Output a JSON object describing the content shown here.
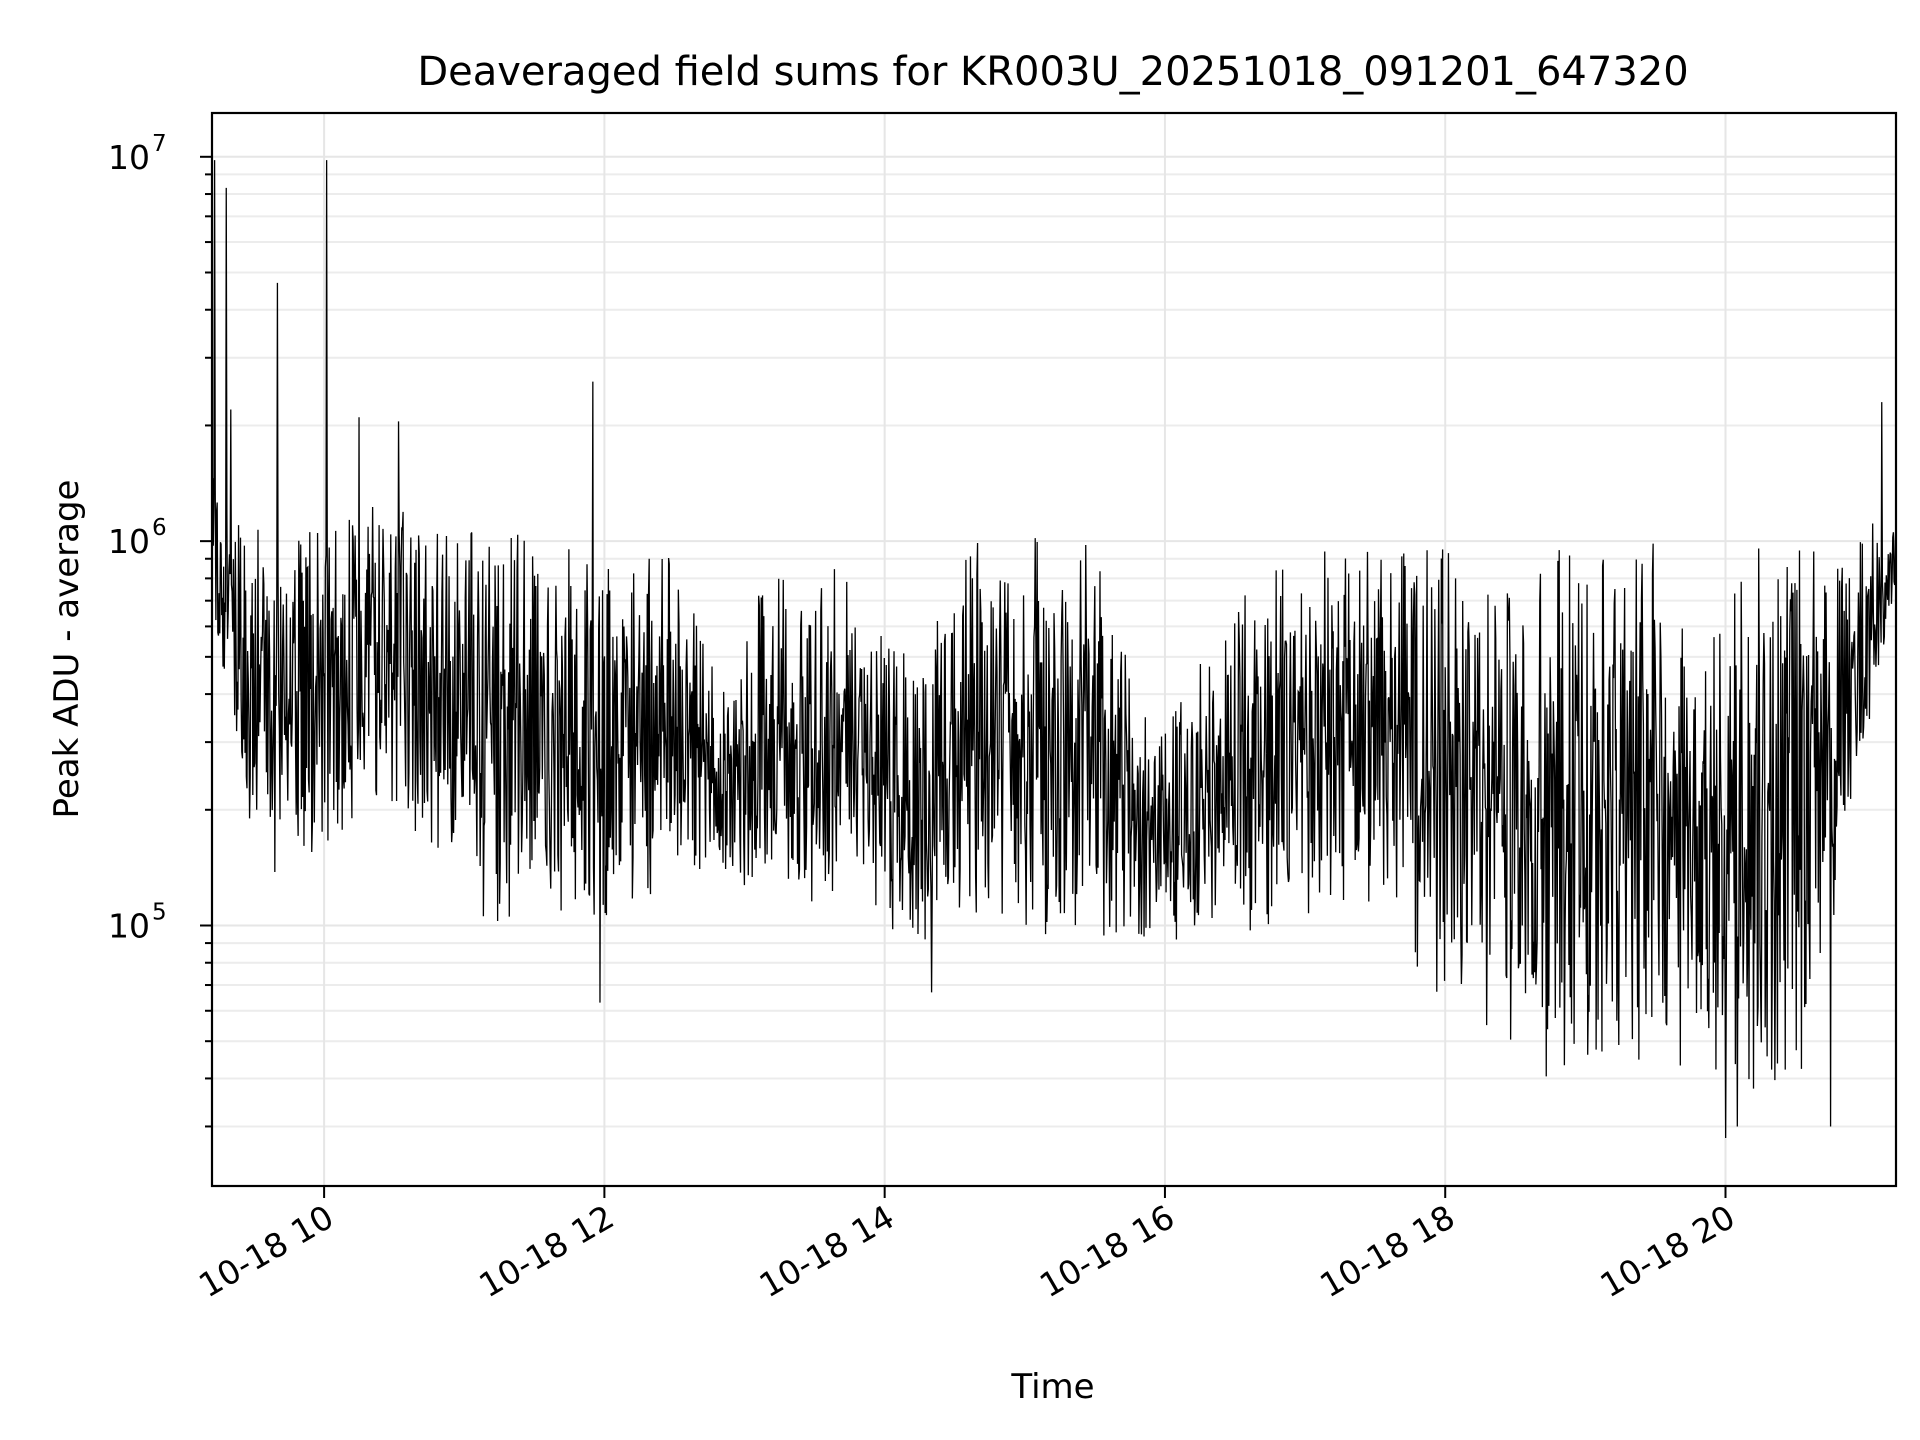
{
  "chart_data": {
    "type": "line",
    "title": "Deaveraged field sums for KR003U_20251018_091201_647320",
    "xlabel": "Time",
    "ylabel": "Peak ADU - average",
    "xscale": "time",
    "yscale": "log",
    "xlim": [
      "2025-10-18 09:12",
      "2025-10-18 21:13"
    ],
    "ylim": [
      21000,
      13000000
    ],
    "grid": true,
    "x_ticks": [
      {
        "value": "2025-10-18 10:00",
        "label": "10-18 10"
      },
      {
        "value": "2025-10-18 12:00",
        "label": "10-18 12"
      },
      {
        "value": "2025-10-18 14:00",
        "label": "10-18 14"
      },
      {
        "value": "2025-10-18 16:00",
        "label": "10-18 16"
      },
      {
        "value": "2025-10-18 18:00",
        "label": "10-18 18"
      },
      {
        "value": "2025-10-18 20:00",
        "label": "10-18 20"
      }
    ],
    "y_ticks": [
      {
        "value": 100000,
        "base": "10",
        "exp": "5"
      },
      {
        "value": 1000000,
        "base": "10",
        "exp": "6"
      },
      {
        "value": 10000000,
        "base": "10",
        "exp": "7"
      }
    ],
    "series_color": "#000000",
    "envelope": [
      {
        "x": "2025-10-18 09:12",
        "low": 700000,
        "high": 1800000
      },
      {
        "x": "2025-10-18 09:20",
        "low": 250000,
        "high": 1300000
      },
      {
        "x": "2025-10-18 09:40",
        "low": 120000,
        "high": 1050000
      },
      {
        "x": "2025-10-18 10:10",
        "low": 170000,
        "high": 1600000
      },
      {
        "x": "2025-10-18 10:30",
        "low": 200000,
        "high": 1300000
      },
      {
        "x": "2025-10-18 10:50",
        "low": 130000,
        "high": 1200000
      },
      {
        "x": "2025-10-18 11:10",
        "low": 90000,
        "high": 1200000
      },
      {
        "x": "2025-10-18 11:40",
        "low": 110000,
        "high": 1100000
      },
      {
        "x": "2025-10-18 12:00",
        "low": 90000,
        "high": 1000000
      },
      {
        "x": "2025-10-18 12:30",
        "low": 130000,
        "high": 950000
      },
      {
        "x": "2025-10-18 12:50",
        "low": 130000,
        "high": 400000
      },
      {
        "x": "2025-10-18 13:10",
        "low": 120000,
        "high": 900000
      },
      {
        "x": "2025-10-18 13:40",
        "low": 110000,
        "high": 900000
      },
      {
        "x": "2025-10-18 14:10",
        "low": 85000,
        "high": 500000
      },
      {
        "x": "2025-10-18 14:30",
        "low": 100000,
        "high": 1050000
      },
      {
        "x": "2025-10-18 15:00",
        "low": 95000,
        "high": 1050000
      },
      {
        "x": "2025-10-18 15:30",
        "low": 90000,
        "high": 1000000
      },
      {
        "x": "2025-10-18 15:50",
        "low": 85000,
        "high": 400000
      },
      {
        "x": "2025-10-18 16:20",
        "low": 95000,
        "high": 500000
      },
      {
        "x": "2025-10-18 16:40",
        "low": 95000,
        "high": 900000
      },
      {
        "x": "2025-10-18 17:10",
        "low": 100000,
        "high": 950000
      },
      {
        "x": "2025-10-18 17:40",
        "low": 90000,
        "high": 1050000
      },
      {
        "x": "2025-10-18 18:00",
        "low": 60000,
        "high": 1000000
      },
      {
        "x": "2025-10-18 18:30",
        "low": 40000,
        "high": 1000000
      },
      {
        "x": "2025-10-18 19:00",
        "low": 40000,
        "high": 1000000
      },
      {
        "x": "2025-10-18 19:30",
        "low": 45000,
        "high": 1000000
      },
      {
        "x": "2025-10-18 19:50",
        "low": 40000,
        "high": 500000
      },
      {
        "x": "2025-10-18 20:10",
        "low": 32000,
        "high": 1000000
      },
      {
        "x": "2025-10-18 20:40",
        "low": 45000,
        "high": 1000000
      },
      {
        "x": "2025-10-18 20:50",
        "low": 150000,
        "high": 1000000
      },
      {
        "x": "2025-10-18 21:05",
        "low": 400000,
        "high": 1200000
      },
      {
        "x": "2025-10-18 21:13",
        "low": 800000,
        "high": 1200000
      }
    ],
    "spikes": [
      {
        "x": "2025-10-18 09:13",
        "y": 9800000
      },
      {
        "x": "2025-10-18 09:18",
        "y": 8300000
      },
      {
        "x": "2025-10-18 09:20",
        "y": 2200000
      },
      {
        "x": "2025-10-18 09:40",
        "y": 4700000
      },
      {
        "x": "2025-10-18 10:01",
        "y": 9800000
      },
      {
        "x": "2025-10-18 10:15",
        "y": 2100000
      },
      {
        "x": "2025-10-18 10:32",
        "y": 2050000
      },
      {
        "x": "2025-10-18 11:55",
        "y": 2600000
      },
      {
        "x": "2025-10-18 14:20",
        "y": 67000
      },
      {
        "x": "2025-10-18 11:58",
        "y": 63000
      },
      {
        "x": "2025-10-18 20:00",
        "y": 28000
      },
      {
        "x": "2025-10-18 20:05",
        "y": 30000
      },
      {
        "x": "2025-10-18 21:07",
        "y": 2300000
      },
      {
        "x": "2025-10-18 20:45",
        "y": 30000
      }
    ]
  }
}
